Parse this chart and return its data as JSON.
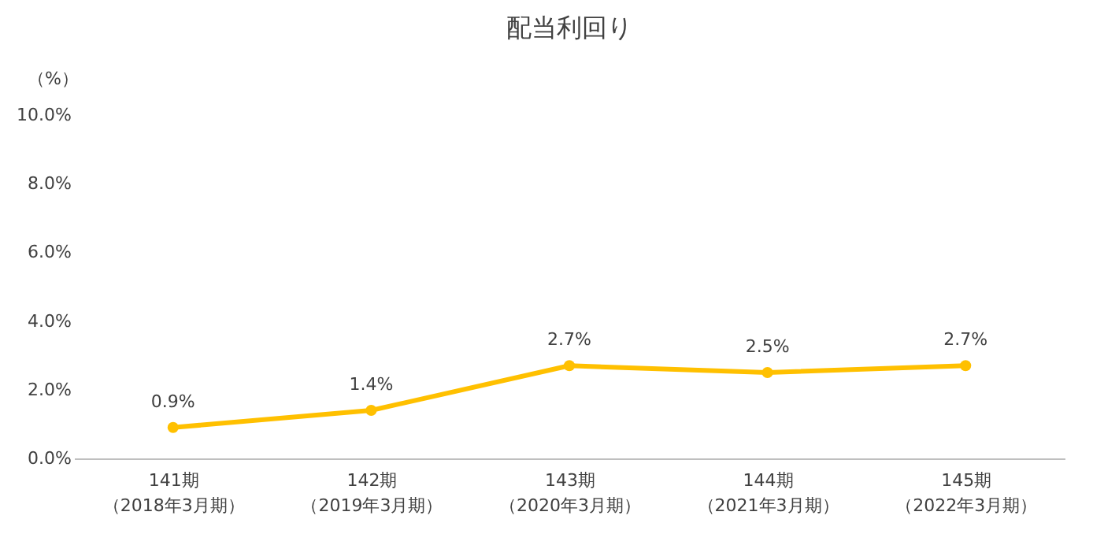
{
  "chart_data": {
    "type": "line",
    "title": "配当利回り",
    "ylabel": "（%）",
    "categories": [
      "141期（2018年3月期）",
      "142期（2019年3月期）",
      "143期（2020年3月期）",
      "144期（2021年3月期）",
      "145期（2022年3月期）"
    ],
    "series": [
      {
        "color": "#ffc000",
        "values": [
          0.9,
          1.4,
          2.7,
          2.5,
          2.7
        ],
        "value_labels": [
          "0.9%",
          "1.4%",
          "2.7%",
          "2.5%",
          "2.7%"
        ]
      }
    ],
    "ylim": [
      0,
      10
    ],
    "yticks": [
      {
        "value": 0,
        "label": "0.0%"
      },
      {
        "value": 2,
        "label": "2.0%"
      },
      {
        "value": 4,
        "label": "4.0%"
      },
      {
        "value": 6,
        "label": "6.0%"
      },
      {
        "value": 8,
        "label": "8.0%"
      },
      {
        "value": 10,
        "label": "10.0%"
      }
    ],
    "marker": "circle",
    "line_style": "solid",
    "grid": false,
    "legend": false
  }
}
